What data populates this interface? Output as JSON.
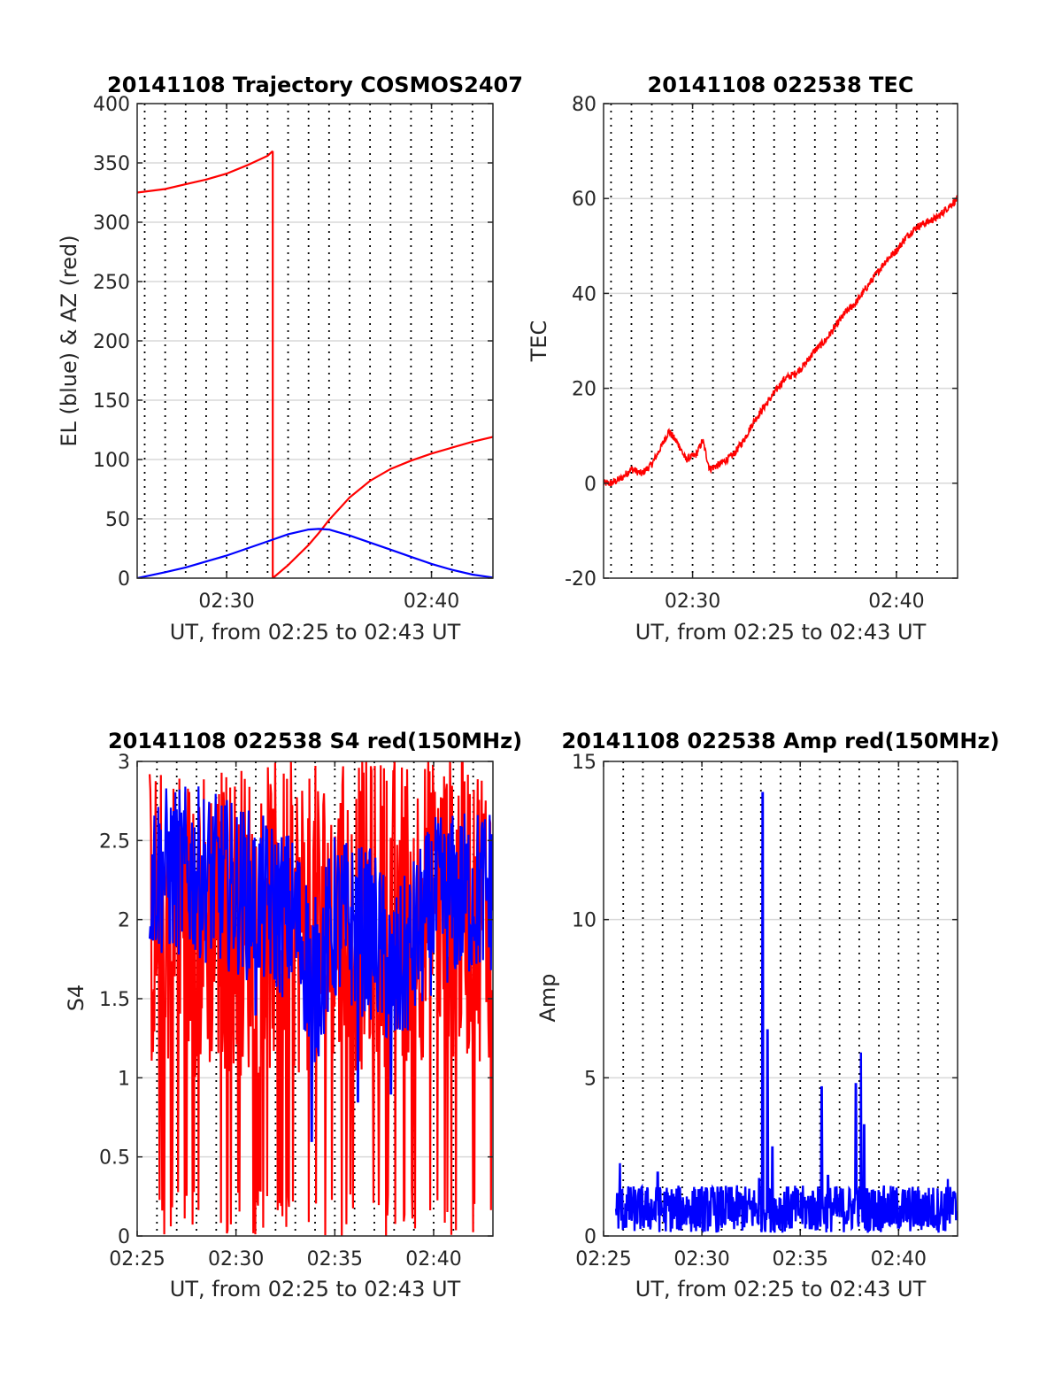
{
  "figure": {
    "colors": {
      "red": "#ff0000",
      "blue": "#0000ff",
      "grid": "#d9d9d9",
      "axis": "#262626"
    }
  },
  "chart_data": [
    {
      "id": "trajectory",
      "type": "line",
      "title": "20141108 Trajectory COSMOS2407",
      "xlabel": "UT, from 02:25 to 02:43 UT",
      "ylabel": "EL (blue) & AZ (red)",
      "xlim": [
        "02:25:38",
        "02:43:00"
      ],
      "ylim": [
        0,
        400
      ],
      "yticks": [
        0,
        50,
        100,
        150,
        200,
        250,
        300,
        350,
        400
      ],
      "xticks": [
        {
          "t": "02:30",
          "label": "02:30"
        },
        {
          "t": "02:40",
          "label": "02:40"
        }
      ],
      "minor_grid_minutes": true,
      "series": [
        {
          "color": "#ff0000",
          "segments": [
            [
              [
                "02:25:38",
                325
              ],
              [
                "02:27:00",
                328
              ],
              [
                "02:28:00",
                332
              ],
              [
                "02:29:00",
                336
              ],
              [
                "02:30:00",
                341
              ],
              [
                "02:31:00",
                348
              ],
              [
                "02:32:00",
                356
              ],
              [
                "02:32:15",
                360
              ]
            ],
            [
              [
                "02:32:15",
                360
              ],
              [
                "02:32:15",
                0
              ]
            ],
            [
              [
                "02:32:15",
                0
              ],
              [
                "02:33:00",
                11
              ],
              [
                "02:34:00",
                28
              ],
              [
                "02:34:30",
                38
              ],
              [
                "02:35:00",
                49
              ],
              [
                "02:36:00",
                68
              ],
              [
                "02:37:00",
                82
              ],
              [
                "02:38:00",
                92
              ],
              [
                "02:39:00",
                99
              ],
              [
                "02:40:00",
                105
              ],
              [
                "02:41:00",
                110
              ],
              [
                "02:42:00",
                115
              ],
              [
                "02:43:00",
                119
              ]
            ]
          ]
        },
        {
          "color": "#0000ff",
          "segments": [
            [
              [
                "02:25:38",
                0
              ],
              [
                "02:27:00",
                5
              ],
              [
                "02:28:00",
                9
              ],
              [
                "02:29:00",
                14
              ],
              [
                "02:30:00",
                19
              ],
              [
                "02:31:00",
                25
              ],
              [
                "02:32:00",
                31
              ],
              [
                "02:33:00",
                37
              ],
              [
                "02:34:00",
                41
              ],
              [
                "02:34:30",
                41.5
              ],
              [
                "02:35:00",
                41
              ],
              [
                "02:36:00",
                36
              ],
              [
                "02:37:00",
                30
              ],
              [
                "02:38:00",
                24
              ],
              [
                "02:39:00",
                18
              ],
              [
                "02:40:00",
                12
              ],
              [
                "02:41:00",
                7
              ],
              [
                "02:42:00",
                3
              ],
              [
                "02:43:00",
                0.5
              ]
            ]
          ]
        }
      ]
    },
    {
      "id": "tec",
      "type": "line",
      "title": "20141108 022538 TEC",
      "xlabel": "UT, from 02:25 to 02:43 UT",
      "ylabel": "TEC",
      "xlim": [
        "02:25:38",
        "02:43:00"
      ],
      "ylim": [
        -20,
        80
      ],
      "yticks": [
        -20,
        0,
        20,
        40,
        60,
        80
      ],
      "xticks": [
        {
          "t": "02:30",
          "label": "02:30"
        },
        {
          "t": "02:40",
          "label": "02:40"
        }
      ],
      "minor_grid_minutes": true,
      "series": [
        {
          "color": "#ff0000",
          "noise": 0.8,
          "points": [
            [
              "02:25:38",
              0
            ],
            [
              "02:26:00",
              0
            ],
            [
              "02:26:30",
              1
            ],
            [
              "02:27:00",
              3
            ],
            [
              "02:27:30",
              2
            ],
            [
              "02:28:00",
              4
            ],
            [
              "02:28:30",
              8
            ],
            [
              "02:28:50",
              11
            ],
            [
              "02:29:20",
              8
            ],
            [
              "02:29:40",
              5
            ],
            [
              "02:30:10",
              6
            ],
            [
              "02:30:30",
              9
            ],
            [
              "02:30:50",
              3
            ],
            [
              "02:31:20",
              4
            ],
            [
              "02:32:00",
              6
            ],
            [
              "02:32:30",
              9
            ],
            [
              "02:33:00",
              13
            ],
            [
              "02:33:30",
              16
            ],
            [
              "02:34:00",
              19
            ],
            [
              "02:34:30",
              22
            ],
            [
              "02:35:00",
              23
            ],
            [
              "02:35:30",
              25
            ],
            [
              "02:36:00",
              28
            ],
            [
              "02:36:30",
              30
            ],
            [
              "02:37:00",
              33
            ],
            [
              "02:37:30",
              36
            ],
            [
              "02:38:00",
              38
            ],
            [
              "02:38:30",
              41
            ],
            [
              "02:39:00",
              44
            ],
            [
              "02:39:30",
              47
            ],
            [
              "02:40:00",
              49
            ],
            [
              "02:40:30",
              52
            ],
            [
              "02:41:00",
              54
            ],
            [
              "02:41:30",
              55
            ],
            [
              "02:42:00",
              56
            ],
            [
              "02:42:30",
              58
            ],
            [
              "02:43:00",
              60
            ]
          ]
        }
      ]
    },
    {
      "id": "s4",
      "type": "line",
      "title": "20141108 022538 S4 red(150MHz)",
      "xlabel": "UT, from 02:25 to 02:43 UT",
      "ylabel": "S4",
      "xlim": [
        "02:25:00",
        "02:43:00"
      ],
      "ylim": [
        0,
        3
      ],
      "yticks": [
        0,
        0.5,
        1,
        1.5,
        2,
        2.5,
        3
      ],
      "ytick_labels": [
        "0",
        "0.5",
        "1",
        "1.5",
        "2",
        "2.5",
        "3"
      ],
      "xticks": [
        {
          "t": "02:25",
          "label": "02:25"
        },
        {
          "t": "02:30",
          "label": "02:30"
        },
        {
          "t": "02:35",
          "label": "02:35"
        },
        {
          "t": "02:40",
          "label": "02:40"
        }
      ],
      "minor_grid_minutes": true,
      "series": [
        {
          "color": "#ff0000",
          "style": "noise",
          "start": "02:25:38",
          "end": "02:43:00",
          "samples": 520,
          "levels": [
            [
              "02:25:38",
              2.0
            ],
            [
              "02:30:00",
              2.0
            ],
            [
              "02:35:00",
              2.0
            ],
            [
              "02:40:00",
              2.1
            ],
            [
              "02:43:00",
              2.1
            ]
          ],
          "spread": 1.0,
          "dropout_prob": 0.12
        },
        {
          "color": "#0000ff",
          "style": "noise",
          "start": "02:25:38",
          "end": "02:43:00",
          "samples": 520,
          "levels": [
            [
              "02:25:38",
              2.3
            ],
            [
              "02:28:00",
              2.3
            ],
            [
              "02:30:00",
              2.2
            ],
            [
              "02:33:00",
              2.0
            ],
            [
              "02:34:00",
              1.6
            ],
            [
              "02:35:00",
              2.0
            ],
            [
              "02:37:00",
              1.9
            ],
            [
              "02:38:00",
              1.6
            ],
            [
              "02:40:00",
              2.1
            ],
            [
              "02:43:00",
              2.2
            ]
          ],
          "spread": 0.55,
          "dips": [
            [
              "02:33:50",
              0.6
            ],
            [
              "02:36:10",
              0.85
            ],
            [
              "02:37:50",
              0.9
            ],
            [
              "02:31:00",
              1.4
            ]
          ]
        }
      ]
    },
    {
      "id": "amp",
      "type": "line",
      "title": "20141108 022538 Amp red(150MHz)",
      "xlabel": "UT, from 02:25 to 02:43 UT",
      "ylabel": "Amp",
      "xlim": [
        "02:25:00",
        "02:43:00"
      ],
      "ylim": [
        0,
        15
      ],
      "yticks": [
        0,
        5,
        10,
        15
      ],
      "xticks": [
        {
          "t": "02:25",
          "label": "02:25"
        },
        {
          "t": "02:30",
          "label": "02:30"
        },
        {
          "t": "02:35",
          "label": "02:35"
        },
        {
          "t": "02:40",
          "label": "02:40"
        }
      ],
      "minor_grid_minutes": true,
      "series": [
        {
          "color": "#0000ff",
          "style": "noise",
          "start": "02:25:38",
          "end": "02:43:00",
          "samples": 700,
          "base": 0.85,
          "spread": 0.75,
          "spikes": [
            [
              "02:33:05",
              14.0
            ],
            [
              "02:33:20",
              6.5
            ],
            [
              "02:33:35",
              2.8
            ],
            [
              "02:32:55",
              1.8
            ],
            [
              "02:36:05",
              4.7
            ],
            [
              "02:36:25",
              1.9
            ],
            [
              "02:37:50",
              4.8
            ],
            [
              "02:38:05",
              5.8
            ],
            [
              "02:38:15",
              3.5
            ],
            [
              "02:25:50",
              2.3
            ],
            [
              "02:27:45",
              2.0
            ],
            [
              "02:42:30",
              1.8
            ]
          ]
        }
      ]
    }
  ]
}
